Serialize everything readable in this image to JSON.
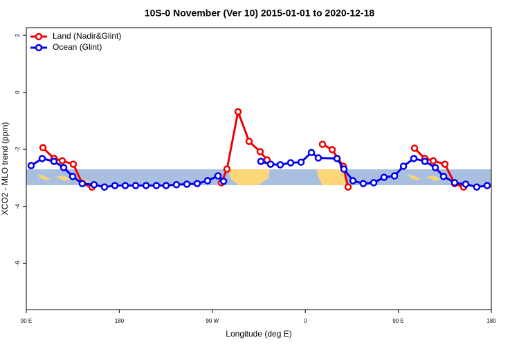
{
  "chart_data": {
    "type": "line",
    "title": "10S-0 November (Ver 10)   2015-01-01 to 2020-12-18",
    "xlabel": "Longitude (deg E)",
    "ylabel": "XCO2 - MLO trend (ppm)",
    "xlim": [
      90,
      540
    ],
    "xticks": [
      {
        "value": 90,
        "label": "90 E"
      },
      {
        "value": 180,
        "label": "180"
      },
      {
        "value": 270,
        "label": "90 W"
      },
      {
        "value": 360,
        "label": "0"
      },
      {
        "value": 450,
        "label": "90 E"
      },
      {
        "value": 540,
        "label": "180"
      }
    ],
    "ylim": [
      -7.62,
      2.27
    ],
    "yticks": [
      -6,
      -4,
      -2,
      0,
      2
    ],
    "legend": "top-left",
    "series": [
      {
        "name": "Land (Nadir&Glint)",
        "color": "#ee0000",
        "x": [
          106.1,
          116.8,
          124.8,
          135.5,
          144.2,
          153.6,
          null,
          278.8,
          284.2,
          294.9,
          305.6,
          316.3,
          323,
          null,
          376.6,
          386,
          396.7,
          401.4,
          null,
          465.7,
          475.7,
          483.8,
          495.1,
          504.5,
          513.2
        ],
        "values": [
          -1.94,
          -2.32,
          -2.4,
          -2.52,
          -3.2,
          -3.32,
          null,
          -3.17,
          -2.69,
          -0.68,
          -1.72,
          -2.08,
          -2.37,
          null,
          -1.82,
          -2.01,
          -2.59,
          -3.32,
          null,
          -1.96,
          -2.32,
          -2.4,
          -2.52,
          -3.2,
          -3.32
        ]
      },
      {
        "name": "Ocean (Glint)",
        "color": "#0000ee",
        "x": [
          94.7,
          105.4,
          116.8,
          126.2,
          134.9,
          144.2,
          155.6,
          165.7,
          175.7,
          185.8,
          195.8,
          205.9,
          215.9,
          225.3,
          235.3,
          245.4,
          255.4,
          265.4,
          275.5,
          280.9,
          null,
          317,
          326.4,
          335.8,
          345.8,
          355.9,
          365.9,
          372.6,
          390.7,
          397.4,
          406.1,
          416.1,
          426.2,
          436.2,
          446.3,
          455,
          465,
          475.7,
          485.8,
          493.8,
          504.5,
          515.2,
          525.9,
          536
        ],
        "values": [
          -2.57,
          -2.32,
          -2.42,
          -2.64,
          -2.95,
          -3.2,
          -3.24,
          -3.32,
          -3.27,
          -3.27,
          -3.27,
          -3.27,
          -3.27,
          -3.27,
          -3.24,
          -3.22,
          -3.2,
          -3.1,
          -2.93,
          -3.12,
          null,
          -2.42,
          -2.52,
          -2.54,
          -2.47,
          -2.45,
          -2.11,
          -2.3,
          -2.32,
          -2.69,
          -3.1,
          -3.2,
          -3.17,
          -2.98,
          -2.93,
          -2.59,
          -2.32,
          -2.42,
          -2.64,
          -2.95,
          -3.17,
          -3.22,
          -3.32,
          -3.27
        ]
      }
    ]
  }
}
